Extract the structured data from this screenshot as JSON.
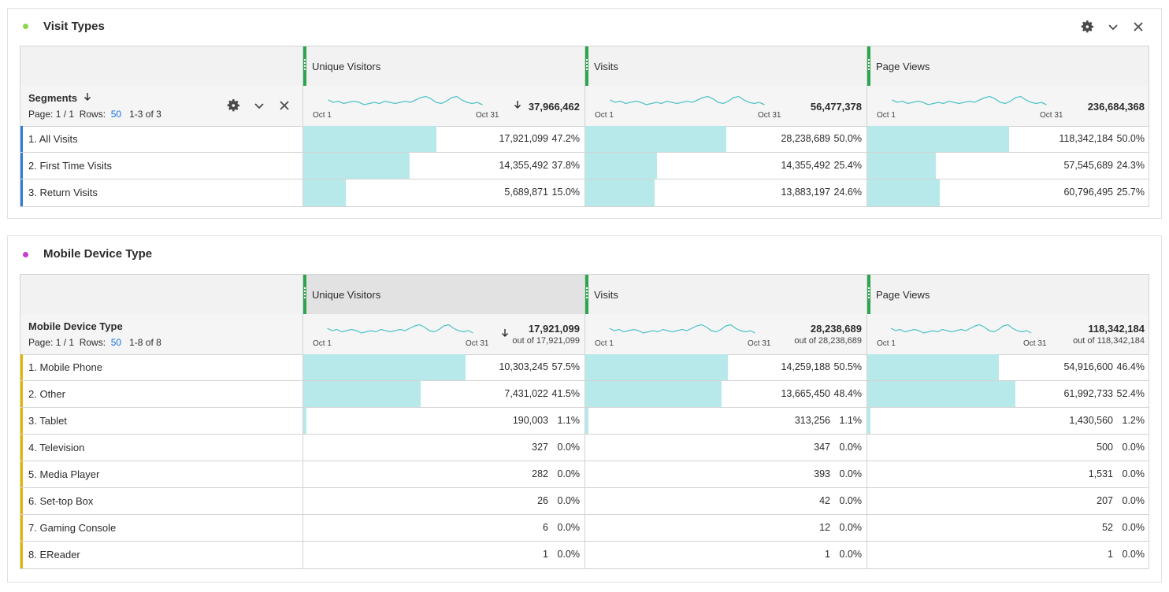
{
  "panels": [
    {
      "title": "Visit Types",
      "dot_color": "#8fd64a",
      "dimension": "Segments",
      "pager": {
        "page": "Page: 1 / 1",
        "rows_label": "Rows:",
        "rows": "50",
        "range": "1-3 of 3"
      },
      "metrics": [
        {
          "name": "Unique Visitors",
          "total": "37,966,462",
          "out_of": "",
          "sorted": true
        },
        {
          "name": "Visits",
          "total": "56,477,378",
          "out_of": "",
          "sorted": false
        },
        {
          "name": "Page Views",
          "total": "236,684,368",
          "out_of": "",
          "sorted": false
        }
      ],
      "spark_start": "Oct 1",
      "spark_end": "Oct 31",
      "row_marker_color": "#2f7bd8",
      "rows": [
        {
          "label": "1.  All Visits",
          "cells": [
            {
              "value": "17,921,099",
              "pct": "47.2%",
              "frac": 0.472
            },
            {
              "value": "28,238,689",
              "pct": "50.0%",
              "frac": 0.5
            },
            {
              "value": "118,342,184",
              "pct": "50.0%",
              "frac": 0.5
            }
          ]
        },
        {
          "label": "2.  First Time Visits",
          "cells": [
            {
              "value": "14,355,492",
              "pct": "37.8%",
              "frac": 0.378
            },
            {
              "value": "14,355,492",
              "pct": "25.4%",
              "frac": 0.254
            },
            {
              "value": "57,545,689",
              "pct": "24.3%",
              "frac": 0.243
            }
          ]
        },
        {
          "label": "3.  Return Visits",
          "cells": [
            {
              "value": "5,689,871",
              "pct": "15.0%",
              "frac": 0.15
            },
            {
              "value": "13,883,197",
              "pct": "24.6%",
              "frac": 0.246
            },
            {
              "value": "60,796,495",
              "pct": "25.7%",
              "frac": 0.257
            }
          ]
        }
      ]
    },
    {
      "title": "Mobile Device Type",
      "dot_color": "#c93bd3",
      "dimension": "Mobile Device Type",
      "pager": {
        "page": "Page: 1 / 1",
        "rows_label": "Rows:",
        "rows": "50",
        "range": "1-8 of 8"
      },
      "metrics": [
        {
          "name": "Unique Visitors",
          "total": "17,921,099",
          "out_of": "out of 17,921,099",
          "sorted": true
        },
        {
          "name": "Visits",
          "total": "28,238,689",
          "out_of": "out of 28,238,689",
          "sorted": false
        },
        {
          "name": "Page Views",
          "total": "118,342,184",
          "out_of": "out of 118,342,184",
          "sorted": false
        }
      ],
      "spark_start": "Oct 1",
      "spark_end": "Oct 31",
      "row_marker_color": "#e3b500",
      "rows": [
        {
          "label": "1.  Mobile Phone",
          "cells": [
            {
              "value": "10,303,245",
              "pct": "57.5%",
              "frac": 0.575
            },
            {
              "value": "14,259,188",
              "pct": "50.5%",
              "frac": 0.505
            },
            {
              "value": "54,916,600",
              "pct": "46.4%",
              "frac": 0.464
            }
          ]
        },
        {
          "label": "2.  Other",
          "cells": [
            {
              "value": "7,431,022",
              "pct": "41.5%",
              "frac": 0.415
            },
            {
              "value": "13,665,450",
              "pct": "48.4%",
              "frac": 0.484
            },
            {
              "value": "61,992,733",
              "pct": "52.4%",
              "frac": 0.524
            }
          ]
        },
        {
          "label": "3.  Tablet",
          "cells": [
            {
              "value": "190,003",
              "pct": "1.1%",
              "frac": 0.011
            },
            {
              "value": "313,256",
              "pct": "1.1%",
              "frac": 0.011
            },
            {
              "value": "1,430,560",
              "pct": "1.2%",
              "frac": 0.012
            }
          ]
        },
        {
          "label": "4.  Television",
          "cells": [
            {
              "value": "327",
              "pct": "0.0%",
              "frac": 0
            },
            {
              "value": "347",
              "pct": "0.0%",
              "frac": 0
            },
            {
              "value": "500",
              "pct": "0.0%",
              "frac": 0
            }
          ]
        },
        {
          "label": "5.  Media Player",
          "cells": [
            {
              "value": "282",
              "pct": "0.0%",
              "frac": 0
            },
            {
              "value": "393",
              "pct": "0.0%",
              "frac": 0
            },
            {
              "value": "1,531",
              "pct": "0.0%",
              "frac": 0
            }
          ]
        },
        {
          "label": "6.  Set-top Box",
          "cells": [
            {
              "value": "26",
              "pct": "0.0%",
              "frac": 0
            },
            {
              "value": "42",
              "pct": "0.0%",
              "frac": 0
            },
            {
              "value": "207",
              "pct": "0.0%",
              "frac": 0
            }
          ]
        },
        {
          "label": "7.  Gaming Console",
          "cells": [
            {
              "value": "6",
              "pct": "0.0%",
              "frac": 0
            },
            {
              "value": "12",
              "pct": "0.0%",
              "frac": 0
            },
            {
              "value": "52",
              "pct": "0.0%",
              "frac": 0
            }
          ]
        },
        {
          "label": "8.  EReader",
          "cells": [
            {
              "value": "1",
              "pct": "0.0%",
              "frac": 0
            },
            {
              "value": "1",
              "pct": "0.0%",
              "frac": 0
            },
            {
              "value": "1",
              "pct": "0.0%",
              "frac": 0
            }
          ]
        }
      ]
    }
  ],
  "icons": {
    "settings": "gear-icon",
    "collapse": "chevron-down-icon",
    "close": "close-icon",
    "sort": "sort-descending-icon"
  },
  "colors": {
    "bar": "#b8e9ea",
    "sparkline": "#4fc3c7",
    "column_grip": "#2da44e"
  }
}
